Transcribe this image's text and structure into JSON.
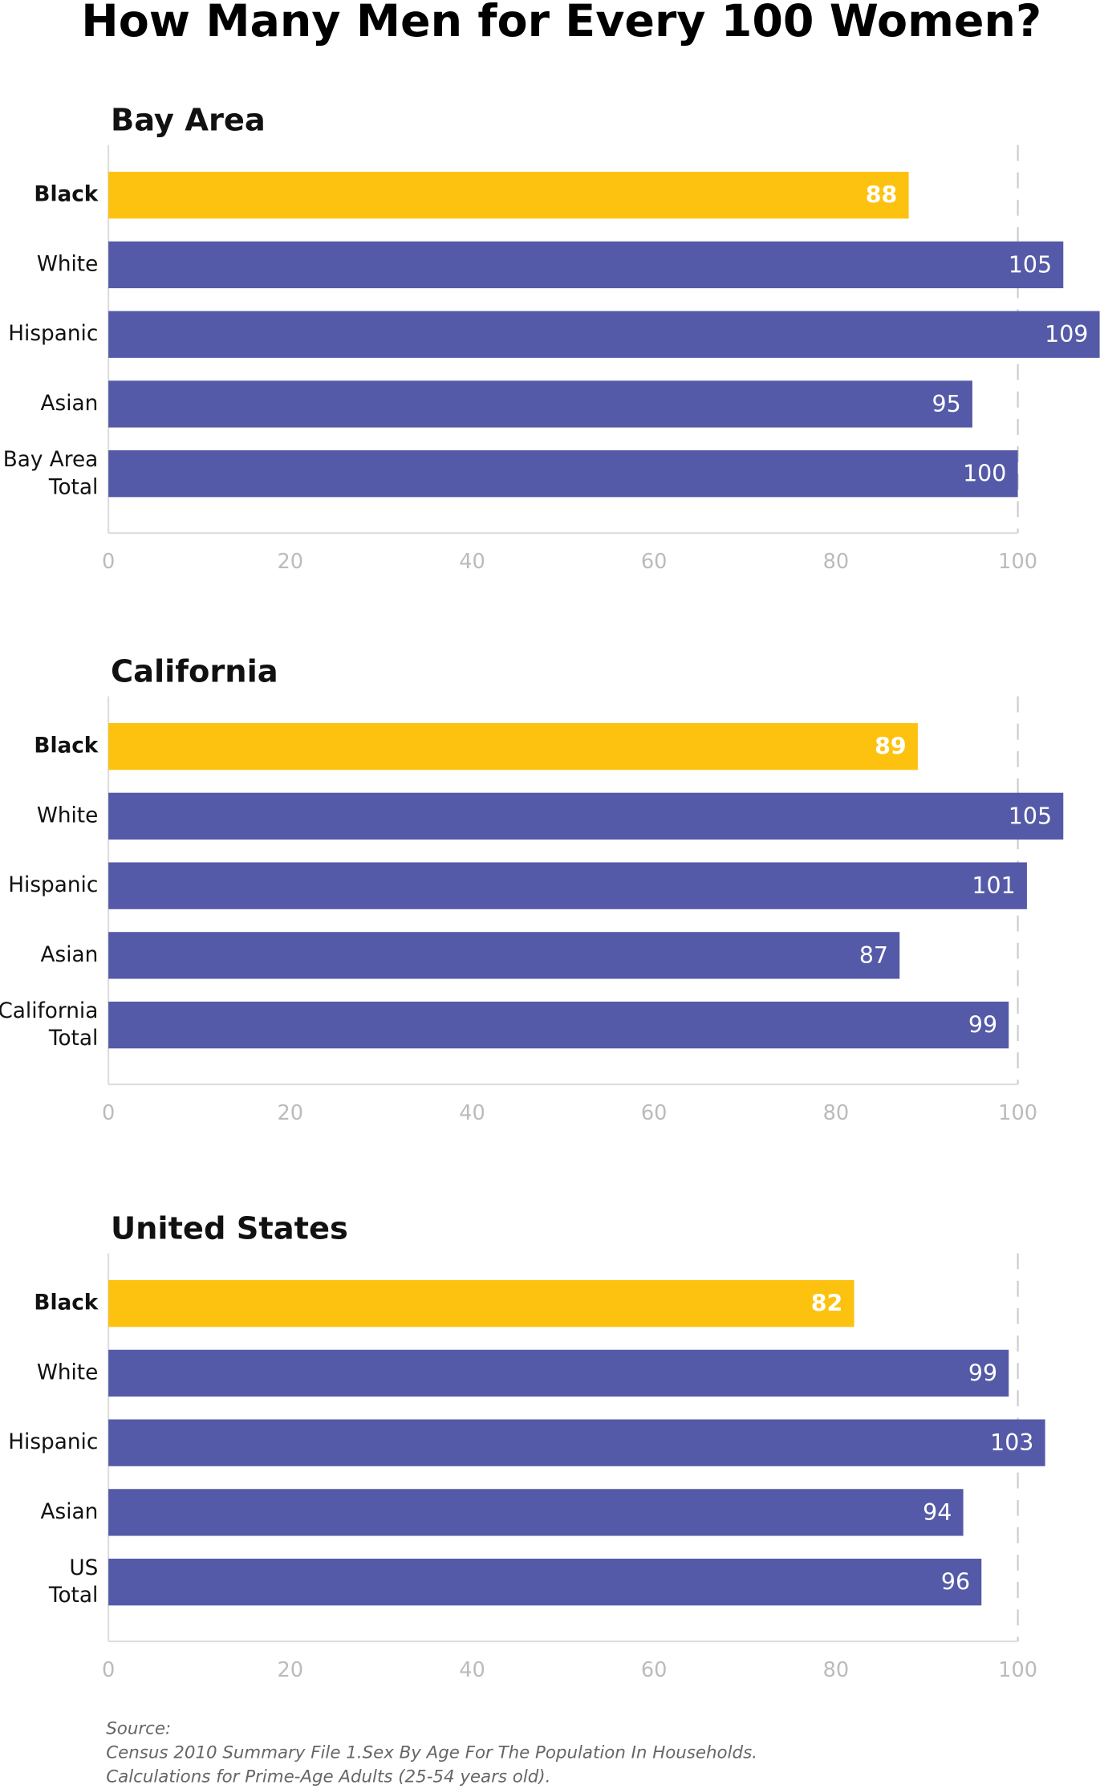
{
  "title": "How Many Men for Every 100 Women?",
  "chart_data": [
    {
      "type": "bar",
      "orientation": "horizontal",
      "title": "Bay Area",
      "categories": [
        "Black",
        "White",
        "Hispanic",
        "Asian",
        "Bay Area\nTotal"
      ],
      "values": [
        88,
        105,
        109,
        95,
        100
      ],
      "colors": [
        "#fdc20f",
        "#545aa7",
        "#545aa7",
        "#545aa7",
        "#545aa7"
      ],
      "xlim": [
        0,
        100
      ],
      "xticks": [
        0,
        20,
        40,
        60,
        80,
        100
      ]
    },
    {
      "type": "bar",
      "orientation": "horizontal",
      "title": "California",
      "categories": [
        "Black",
        "White",
        "Hispanic",
        "Asian",
        "California\nTotal"
      ],
      "values": [
        89,
        105,
        101,
        87,
        99
      ],
      "colors": [
        "#fdc20f",
        "#545aa7",
        "#545aa7",
        "#545aa7",
        "#545aa7"
      ],
      "xlim": [
        0,
        100
      ],
      "xticks": [
        0,
        20,
        40,
        60,
        80,
        100
      ]
    },
    {
      "type": "bar",
      "orientation": "horizontal",
      "title": "United States",
      "categories": [
        "Black",
        "White",
        "Hispanic",
        "Asian",
        "US\nTotal"
      ],
      "values": [
        82,
        99,
        103,
        94,
        96
      ],
      "colors": [
        "#fdc20f",
        "#545aa7",
        "#545aa7",
        "#545aa7",
        "#545aa7"
      ],
      "xlim": [
        0,
        100
      ],
      "xticks": [
        0,
        20,
        40,
        60,
        80,
        100
      ]
    }
  ],
  "source": [
    "Source:",
    "Census 2010 Summary File 1.Sex By Age For The Population In Households.",
    "Calculations for Prime-Age Adults (25-54 years old)."
  ]
}
